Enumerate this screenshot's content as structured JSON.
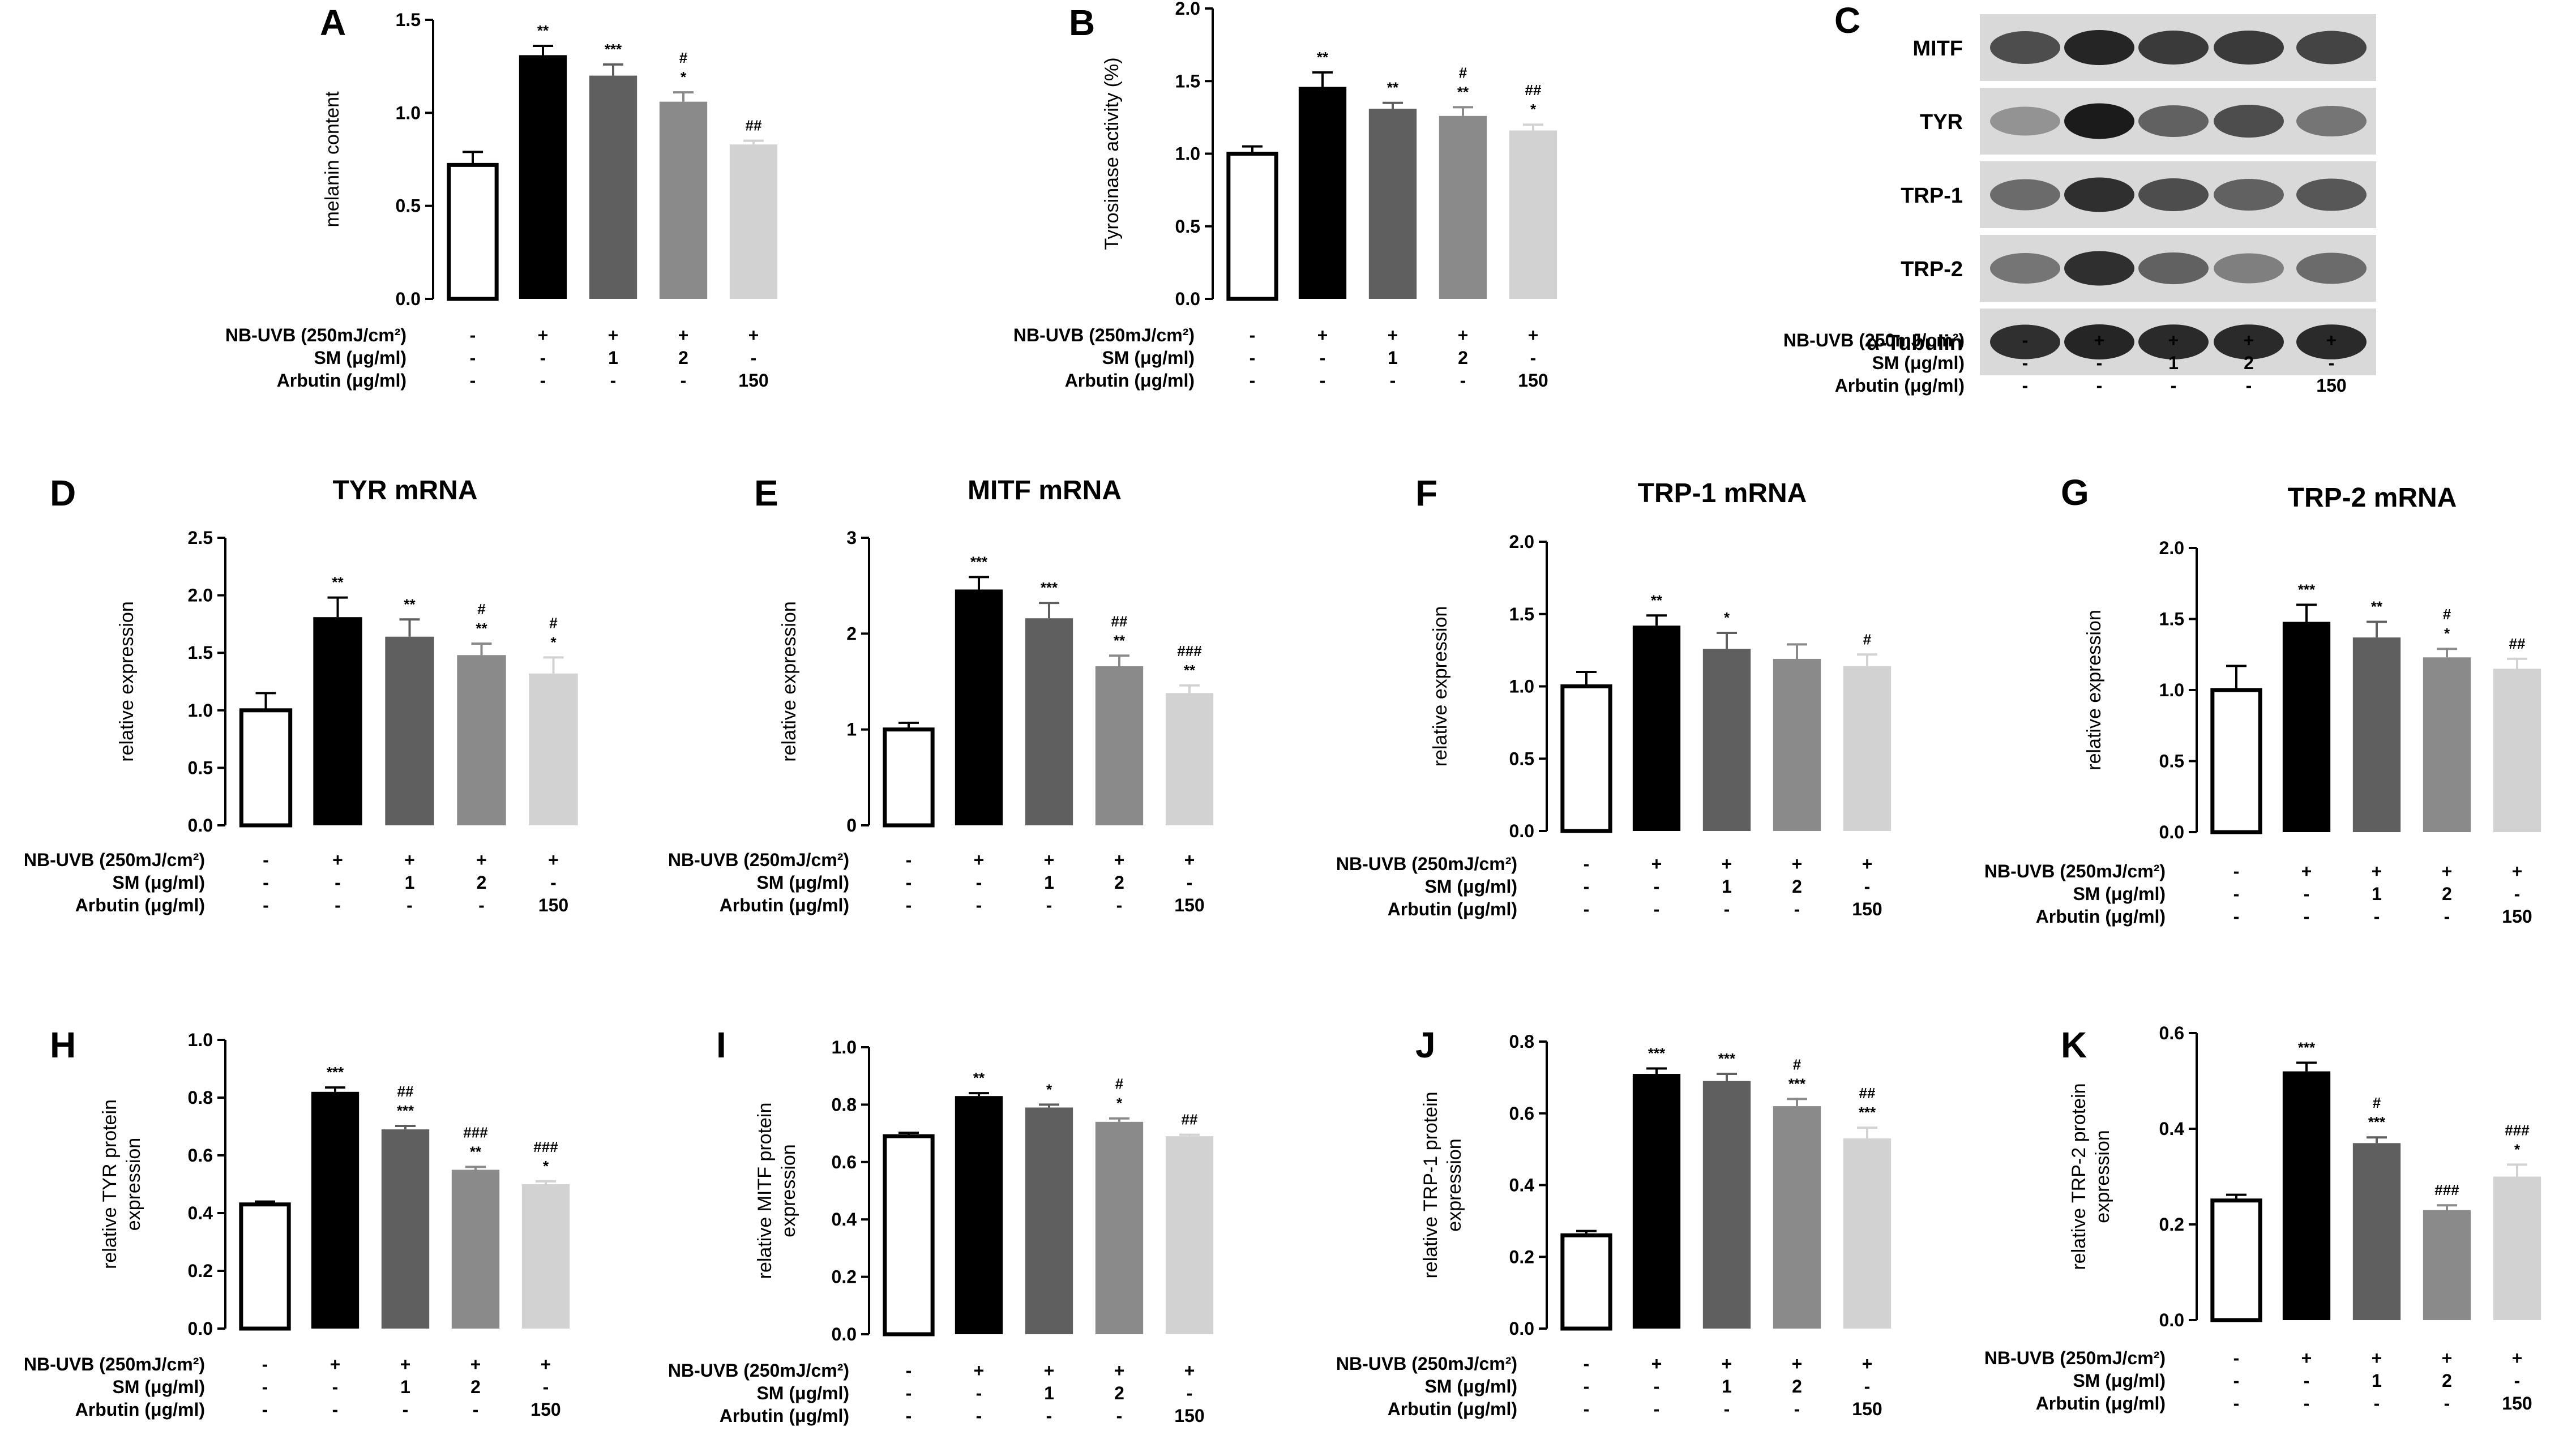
{
  "colors": [
    "#ffffff",
    "#000000",
    "#5f5f5f",
    "#8a8a8a",
    "#d2d2d2"
  ],
  "conditions": {
    "rows": [
      "NB-UVB (250mJ/cm²)",
      "SM (μg/ml)",
      "Arbutin (μg/ml)"
    ],
    "values": [
      [
        "-",
        "+",
        "+",
        "+",
        "+"
      ],
      [
        "-",
        "-",
        "1",
        "2",
        "-"
      ],
      [
        "-",
        "-",
        "-",
        "-",
        "150"
      ]
    ]
  },
  "blot": {
    "label": "C",
    "bands": [
      "MITF",
      "TYR",
      "TRP-1",
      "TRP-2",
      "α-Tubulin"
    ]
  },
  "chart_data": [
    {
      "label": "A",
      "type": "bar",
      "title": "",
      "ylabel": "melanin content",
      "ylim": [
        0,
        1.5
      ],
      "yticks": [
        "0.0",
        "0.5",
        "1.0",
        "1.5"
      ],
      "values": [
        0.72,
        1.31,
        1.2,
        1.06,
        0.83
      ],
      "errors": [
        0.07,
        0.05,
        0.06,
        0.05,
        0.02
      ],
      "sig": [
        [],
        [
          "**"
        ],
        [
          "***"
        ],
        [
          "#",
          "*"
        ],
        [
          "##"
        ]
      ]
    },
    {
      "label": "B",
      "type": "bar",
      "title": "",
      "ylabel": "Tyrosinase activity (%)",
      "ylim": [
        0,
        2.0
      ],
      "yticks": [
        "0.0",
        "0.5",
        "1.0",
        "1.5",
        "2.0"
      ],
      "values": [
        1.0,
        1.46,
        1.31,
        1.26,
        1.16
      ],
      "errors": [
        0.05,
        0.1,
        0.04,
        0.06,
        0.04
      ],
      "sig": [
        [],
        [
          "**"
        ],
        [
          "**"
        ],
        [
          "#",
          "**"
        ],
        [
          "##",
          "*"
        ]
      ]
    },
    {
      "label": "D",
      "type": "bar",
      "title": "TYR mRNA",
      "ylabel": "relative expression",
      "ylim": [
        0,
        2.5
      ],
      "yticks": [
        "0.0",
        "0.5",
        "1.0",
        "1.5",
        "2.0",
        "2.5"
      ],
      "values": [
        1.0,
        1.81,
        1.64,
        1.48,
        1.32
      ],
      "errors": [
        0.15,
        0.17,
        0.15,
        0.1,
        0.14
      ],
      "sig": [
        [],
        [
          "**"
        ],
        [
          "**"
        ],
        [
          "#",
          "**"
        ],
        [
          "#",
          "*"
        ]
      ]
    },
    {
      "label": "E",
      "type": "bar",
      "title": "MITF mRNA",
      "ylabel": "relative expression",
      "ylim": [
        0,
        3
      ],
      "yticks": [
        "0",
        "1",
        "2",
        "3"
      ],
      "values": [
        1.0,
        2.46,
        2.16,
        1.66,
        1.38
      ],
      "errors": [
        0.07,
        0.13,
        0.16,
        0.11,
        0.08
      ],
      "sig": [
        [],
        [
          "***"
        ],
        [
          "***"
        ],
        [
          "##",
          "**"
        ],
        [
          "###",
          "**"
        ]
      ]
    },
    {
      "label": "F",
      "type": "bar",
      "title": "TRP-1 mRNA",
      "ylabel": "relative expression",
      "ylim": [
        0,
        2.0
      ],
      "yticks": [
        "0.0",
        "0.5",
        "1.0",
        "1.5",
        "2.0"
      ],
      "values": [
        1.0,
        1.42,
        1.26,
        1.19,
        1.14
      ],
      "errors": [
        0.1,
        0.07,
        0.11,
        0.1,
        0.08
      ],
      "sig": [
        [],
        [
          "**"
        ],
        [
          "*"
        ],
        [],
        [
          "#"
        ]
      ]
    },
    {
      "label": "G",
      "type": "bar",
      "title": "TRP-2 mRNA",
      "ylabel": "relative expression",
      "ylim": [
        0,
        2.0
      ],
      "yticks": [
        "0.0",
        "0.5",
        "1.0",
        "1.5",
        "2.0"
      ],
      "values": [
        1.0,
        1.48,
        1.37,
        1.23,
        1.15
      ],
      "errors": [
        0.17,
        0.12,
        0.11,
        0.06,
        0.07
      ],
      "sig": [
        [],
        [
          "***"
        ],
        [
          "**"
        ],
        [
          "#",
          "*"
        ],
        [
          "##"
        ]
      ]
    },
    {
      "label": "H",
      "type": "bar",
      "title": "",
      "ylabel": "relative TYR protein expression",
      "ylabel_lines": [
        "relative TYR protein",
        "expression"
      ],
      "ylim": [
        0,
        1.0
      ],
      "yticks": [
        "0.0",
        "0.2",
        "0.4",
        "0.6",
        "0.8",
        "1.0"
      ],
      "values": [
        0.43,
        0.82,
        0.69,
        0.55,
        0.5
      ],
      "errors": [
        0.01,
        0.015,
        0.012,
        0.01,
        0.01
      ],
      "sig": [
        [],
        [
          "***"
        ],
        [
          "##",
          "***"
        ],
        [
          "###",
          "**"
        ],
        [
          "###",
          "*"
        ]
      ]
    },
    {
      "label": "I",
      "type": "bar",
      "title": "",
      "ylabel": "relative MITF protein expression",
      "ylabel_lines": [
        "relative MITF protein",
        "expression"
      ],
      "ylim": [
        0,
        1.0
      ],
      "yticks": [
        "0.0",
        "0.2",
        "0.4",
        "0.6",
        "0.8",
        "1.0"
      ],
      "values": [
        0.69,
        0.83,
        0.79,
        0.74,
        0.69
      ],
      "errors": [
        0.012,
        0.01,
        0.01,
        0.012,
        0.005
      ],
      "sig": [
        [],
        [
          "**"
        ],
        [
          "*"
        ],
        [
          "#",
          "*"
        ],
        [
          "##"
        ]
      ]
    },
    {
      "label": "J",
      "type": "bar",
      "title": "",
      "ylabel": "relative TRP-1 protein expression",
      "ylabel_lines": [
        "relative TRP-1 protein",
        "expression"
      ],
      "ylim": [
        0,
        0.8
      ],
      "yticks": [
        "0.0",
        "0.2",
        "0.4",
        "0.6",
        "0.8"
      ],
      "values": [
        0.26,
        0.71,
        0.69,
        0.62,
        0.53
      ],
      "errors": [
        0.012,
        0.015,
        0.02,
        0.02,
        0.03
      ],
      "sig": [
        [],
        [
          "***"
        ],
        [
          "***"
        ],
        [
          "#",
          "***"
        ],
        [
          "##",
          "***"
        ]
      ]
    },
    {
      "label": "K",
      "type": "bar",
      "title": "",
      "ylabel": "relative TRP-2 protein expression",
      "ylabel_lines": [
        "relative TRP-2 protein",
        "expression"
      ],
      "ylim": [
        0,
        0.6
      ],
      "yticks": [
        "0.0",
        "0.2",
        "0.4",
        "0.6"
      ],
      "values": [
        0.25,
        0.52,
        0.37,
        0.23,
        0.3
      ],
      "errors": [
        0.012,
        0.018,
        0.012,
        0.01,
        0.025
      ],
      "sig": [
        [],
        [
          "***"
        ],
        [
          "#",
          "***"
        ],
        [
          "###"
        ],
        [
          "###",
          "*"
        ]
      ]
    }
  ]
}
